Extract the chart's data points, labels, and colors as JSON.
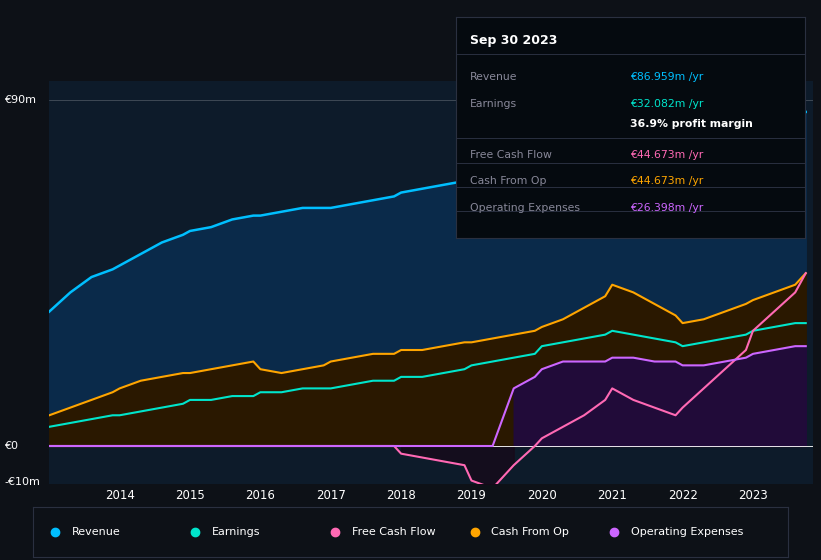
{
  "bg_color": "#0d1117",
  "chart_bg": "#0d1b2a",
  "ylabel_top": "€90m",
  "ylabel_zero": "€0",
  "ylabel_neg": "-€10m",
  "xticks": [
    "2014",
    "2015",
    "2016",
    "2017",
    "2018",
    "2019",
    "2020",
    "2021",
    "2022",
    "2023"
  ],
  "legend_items": [
    "Revenue",
    "Earnings",
    "Free Cash Flow",
    "Cash From Op",
    "Operating Expenses"
  ],
  "legend_colors": [
    "#00bfff",
    "#00e5cc",
    "#ff69b4",
    "#ffa500",
    "#cc66ff"
  ],
  "info_box": {
    "title": "Sep 30 2023",
    "rows": [
      {
        "label": "Revenue",
        "value": "€86.959m /yr",
        "value_color": "#00bfff",
        "bold": false
      },
      {
        "label": "Earnings",
        "value": "€32.082m /yr",
        "value_color": "#00e5cc",
        "bold": false
      },
      {
        "label": "",
        "value": "36.9% profit margin",
        "value_color": "#ffffff",
        "bold": true
      },
      {
        "label": "Free Cash Flow",
        "value": "€44.673m /yr",
        "value_color": "#ff69b4",
        "bold": false
      },
      {
        "label": "Cash From Op",
        "value": "€44.673m /yr",
        "value_color": "#ffa500",
        "bold": false
      },
      {
        "label": "Operating Expenses",
        "value": "€26.398m /yr",
        "value_color": "#cc66ff",
        "bold": false
      }
    ]
  },
  "revenue": {
    "x": [
      2013.0,
      2013.3,
      2013.6,
      2013.9,
      2014.0,
      2014.3,
      2014.6,
      2014.9,
      2015.0,
      2015.3,
      2015.6,
      2015.9,
      2016.0,
      2016.3,
      2016.6,
      2016.9,
      2017.0,
      2017.3,
      2017.6,
      2017.9,
      2018.0,
      2018.3,
      2018.6,
      2018.9,
      2019.0,
      2019.3,
      2019.6,
      2019.9,
      2020.0,
      2020.3,
      2020.6,
      2020.9,
      2021.0,
      2021.3,
      2021.6,
      2021.9,
      2022.0,
      2022.3,
      2022.6,
      2022.9,
      2023.0,
      2023.3,
      2023.6,
      2023.75
    ],
    "y": [
      35,
      40,
      44,
      46,
      47,
      50,
      53,
      55,
      56,
      57,
      59,
      60,
      60,
      61,
      62,
      62,
      62,
      63,
      64,
      65,
      66,
      67,
      68,
      69,
      70,
      71,
      72,
      73,
      75,
      78,
      82,
      85,
      84,
      81,
      79,
      77,
      74,
      75,
      77,
      79,
      81,
      84,
      87,
      87
    ],
    "color": "#00bfff",
    "fill_color": "#0a2a4a"
  },
  "earnings": {
    "x": [
      2013.0,
      2013.3,
      2013.6,
      2013.9,
      2014.0,
      2014.3,
      2014.6,
      2014.9,
      2015.0,
      2015.3,
      2015.6,
      2015.9,
      2016.0,
      2016.3,
      2016.6,
      2016.9,
      2017.0,
      2017.3,
      2017.6,
      2017.9,
      2018.0,
      2018.3,
      2018.6,
      2018.9,
      2019.0,
      2019.3,
      2019.6,
      2019.9,
      2020.0,
      2020.3,
      2020.6,
      2020.9,
      2021.0,
      2021.3,
      2021.6,
      2021.9,
      2022.0,
      2022.3,
      2022.6,
      2022.9,
      2023.0,
      2023.3,
      2023.6,
      2023.75
    ],
    "y": [
      5,
      6,
      7,
      8,
      8,
      9,
      10,
      11,
      12,
      12,
      13,
      13,
      14,
      14,
      15,
      15,
      15,
      16,
      17,
      17,
      18,
      18,
      19,
      20,
      21,
      22,
      23,
      24,
      26,
      27,
      28,
      29,
      30,
      29,
      28,
      27,
      26,
      27,
      28,
      29,
      30,
      31,
      32,
      32
    ],
    "color": "#00e5cc",
    "fill_color": "#0a2a20"
  },
  "free_cash_flow": {
    "x": [
      2013.0,
      2013.3,
      2013.6,
      2013.9,
      2014.0,
      2014.3,
      2014.6,
      2014.9,
      2015.0,
      2015.3,
      2015.6,
      2015.9,
      2016.0,
      2016.3,
      2016.6,
      2016.9,
      2017.0,
      2017.3,
      2017.6,
      2017.9,
      2018.0,
      2018.3,
      2018.6,
      2018.9,
      2019.0,
      2019.3,
      2019.6,
      2019.9,
      2020.0,
      2020.3,
      2020.6,
      2020.9,
      2021.0,
      2021.3,
      2021.6,
      2021.9,
      2022.0,
      2022.3,
      2022.6,
      2022.9,
      2023.0,
      2023.3,
      2023.6,
      2023.75
    ],
    "y": [
      0,
      0,
      0,
      0,
      0,
      0,
      0,
      0,
      0,
      0,
      0,
      0,
      0,
      0,
      0,
      0,
      0,
      0,
      0,
      0,
      -2,
      -3,
      -4,
      -5,
      -9,
      -11,
      -5,
      0,
      2,
      5,
      8,
      12,
      15,
      12,
      10,
      8,
      10,
      15,
      20,
      25,
      30,
      35,
      40,
      45
    ],
    "color": "#ff69b4"
  },
  "cash_from_op": {
    "x": [
      2013.0,
      2013.3,
      2013.6,
      2013.9,
      2014.0,
      2014.3,
      2014.6,
      2014.9,
      2015.0,
      2015.3,
      2015.6,
      2015.9,
      2016.0,
      2016.3,
      2016.6,
      2016.9,
      2017.0,
      2017.3,
      2017.6,
      2017.9,
      2018.0,
      2018.3,
      2018.6,
      2018.9,
      2019.0,
      2019.3,
      2019.6,
      2019.9,
      2020.0,
      2020.3,
      2020.6,
      2020.9,
      2021.0,
      2021.3,
      2021.6,
      2021.9,
      2022.0,
      2022.3,
      2022.6,
      2022.9,
      2023.0,
      2023.3,
      2023.6,
      2023.75
    ],
    "y": [
      8,
      10,
      12,
      14,
      15,
      17,
      18,
      19,
      19,
      20,
      21,
      22,
      20,
      19,
      20,
      21,
      22,
      23,
      24,
      24,
      25,
      25,
      26,
      27,
      27,
      28,
      29,
      30,
      31,
      33,
      36,
      39,
      42,
      40,
      37,
      34,
      32,
      33,
      35,
      37,
      38,
      40,
      42,
      45
    ],
    "color": "#ffa500",
    "fill_color": "#2a1800"
  },
  "op_expenses": {
    "x": [
      2013.0,
      2013.3,
      2013.6,
      2013.9,
      2014.0,
      2014.3,
      2014.6,
      2014.9,
      2015.0,
      2015.3,
      2015.6,
      2015.9,
      2016.0,
      2016.3,
      2016.6,
      2016.9,
      2017.0,
      2017.3,
      2017.6,
      2017.9,
      2018.0,
      2018.3,
      2018.6,
      2018.9,
      2019.0,
      2019.3,
      2019.6,
      2019.9,
      2020.0,
      2020.3,
      2020.6,
      2020.9,
      2021.0,
      2021.3,
      2021.6,
      2021.9,
      2022.0,
      2022.3,
      2022.6,
      2022.9,
      2023.0,
      2023.3,
      2023.6,
      2023.75
    ],
    "y": [
      0,
      0,
      0,
      0,
      0,
      0,
      0,
      0,
      0,
      0,
      0,
      0,
      0,
      0,
      0,
      0,
      0,
      0,
      0,
      0,
      0,
      0,
      0,
      0,
      0,
      0,
      15,
      18,
      20,
      22,
      22,
      22,
      23,
      23,
      22,
      22,
      21,
      21,
      22,
      23,
      24,
      25,
      26,
      26
    ],
    "color": "#cc66ff",
    "fill_color": "#200a40"
  },
  "ylim": [
    -10,
    95
  ],
  "xlim": [
    2013.0,
    2023.85
  ]
}
